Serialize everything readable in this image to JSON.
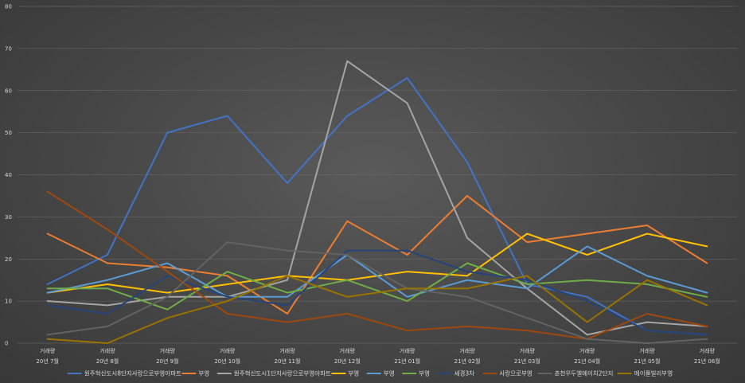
{
  "chart_data": {
    "type": "line",
    "title": "",
    "xlabel": "",
    "ylabel": "",
    "ylim": [
      0,
      80
    ],
    "yticks": [
      0,
      10,
      20,
      30,
      40,
      50,
      60,
      70,
      80
    ],
    "grid": true,
    "legend_position": "bottom",
    "categories": [
      {
        "top": "거래량",
        "bottom": "20년 7월"
      },
      {
        "top": "거래량",
        "bottom": "20년 8월"
      },
      {
        "top": "거래량",
        "bottom": "20년 9월"
      },
      {
        "top": "거래량",
        "bottom": "20년 10월"
      },
      {
        "top": "거래량",
        "bottom": "20년 11월"
      },
      {
        "top": "거래량",
        "bottom": "20년 12월"
      },
      {
        "top": "거래량",
        "bottom": "21년 01월"
      },
      {
        "top": "거래량",
        "bottom": "21년 02월"
      },
      {
        "top": "거래량",
        "bottom": "21년 03월"
      },
      {
        "top": "거래량",
        "bottom": "21년 04월"
      },
      {
        "top": "거래량",
        "bottom": "21년 05월"
      },
      {
        "top": "거래량",
        "bottom": "21년 06월"
      }
    ],
    "series": [
      {
        "name": "원주혁신도시8단지사랑으로부영아파트",
        "color": "#4472c4",
        "values": [
          14,
          21,
          50,
          54,
          38,
          54,
          63,
          43,
          14,
          11,
          3,
          2
        ]
      },
      {
        "name": "부영",
        "color": "#ed7d31",
        "values": [
          26,
          19,
          18,
          16,
          7,
          29,
          21,
          35,
          24,
          26,
          28,
          19
        ]
      },
      {
        "name": "원주혁신도시1단지사랑으로부영아파트",
        "color": "#a5a5a5",
        "values": [
          10,
          9,
          11,
          11,
          15,
          67,
          57,
          25,
          13,
          2,
          5,
          4
        ]
      },
      {
        "name": "부영",
        "color": "#ffc000",
        "values": [
          12,
          14,
          12,
          14,
          16,
          15,
          17,
          16,
          26,
          21,
          26,
          23
        ]
      },
      {
        "name": "부영",
        "color": "#5b9bd5",
        "values": [
          12,
          15,
          19,
          11,
          11,
          21,
          11,
          15,
          13,
          23,
          16,
          12
        ]
      },
      {
        "name": "부영",
        "color": "#70ad47",
        "values": [
          13,
          13,
          8,
          17,
          12,
          15,
          10,
          19,
          14,
          15,
          14,
          11
        ]
      },
      {
        "name": "세경3차",
        "color": "#264478",
        "values": [
          9,
          7,
          16,
          11,
          9,
          22,
          22,
          17,
          15,
          10,
          3,
          2
        ]
      },
      {
        "name": "사랑으로부영",
        "color": "#9e480e",
        "values": [
          36,
          27,
          17,
          7,
          5,
          7,
          3,
          4,
          3,
          1,
          7,
          4
        ]
      },
      {
        "name": "춘천우두엘에이치2단지",
        "color": "#636363",
        "values": [
          2,
          4,
          11,
          24,
          22,
          21,
          13,
          11,
          6,
          1,
          0,
          1
        ]
      },
      {
        "name": "메이플빌리부영",
        "color": "#997300",
        "values": [
          1,
          0,
          6,
          10,
          16,
          11,
          13,
          13,
          16,
          5,
          15,
          9
        ]
      }
    ]
  }
}
